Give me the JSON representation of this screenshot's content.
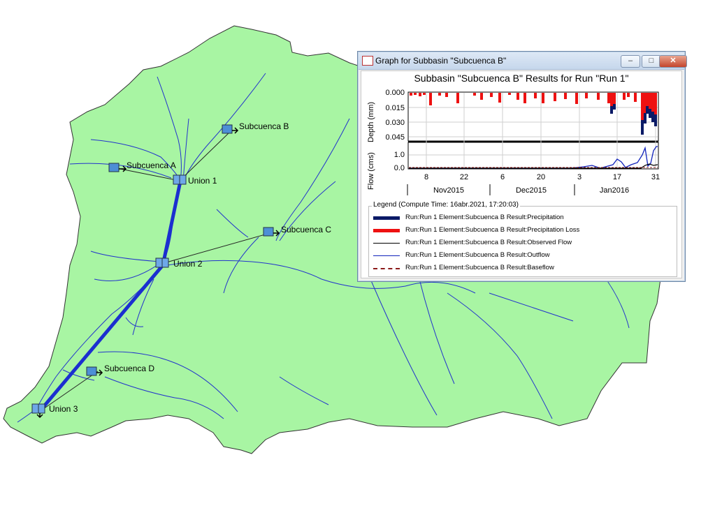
{
  "map": {
    "nodes": [
      {
        "name": "Subcuenca A",
        "type": "subbasin"
      },
      {
        "name": "Subcuenca B",
        "type": "subbasin"
      },
      {
        "name": "Subcuenca C",
        "type": "subbasin"
      },
      {
        "name": "Subcuenca D",
        "type": "subbasin"
      },
      {
        "name": "Union 1",
        "type": "junction"
      },
      {
        "name": "Union 2",
        "type": "junction"
      },
      {
        "name": "Union 3",
        "type": "junction"
      }
    ],
    "colors": {
      "basin_fill": "#a8f5a3",
      "river": "#2233cc",
      "reach": "#1b2fd0"
    }
  },
  "window": {
    "title": "Graph for Subbasin \"Subcuenca B\"",
    "buttons": {
      "minimize": "–",
      "maximize": "□",
      "close": "✕"
    }
  },
  "chart_data": {
    "title": "Subbasin \"Subcuenca B\" Results for Run \"Run 1\"",
    "type": "line",
    "top_panel": {
      "ylabel": "Depth (mm)",
      "y_ticks": [
        "0.000",
        "0.015",
        "0.030",
        "0.045"
      ],
      "ylim": [
        0.0,
        0.05
      ],
      "y_inverted": true,
      "series": [
        {
          "name": "Run:Run 1 Element:Subcuenca B Result:Precipitation",
          "color": "#0a1a66"
        },
        {
          "name": "Run:Run 1 Element:Subcuenca B Result:Precipitation Loss",
          "color": "#ee1111"
        }
      ]
    },
    "bottom_panel": {
      "ylabel": "Flow (cms)",
      "y_ticks": [
        "0.0",
        "1.0"
      ],
      "ylim": [
        0.0,
        1.8
      ],
      "series": [
        {
          "name": "Run:Run 1 Element:Subcuenca B Result:Observed Flow",
          "color": "#000000"
        },
        {
          "name": "Run:Run 1 Element:Subcuenca B Result:Outflow",
          "color": "#1022bb"
        },
        {
          "name": "Run:Run 1 Element:Subcuenca B Result:Baseflow",
          "color": "#8b1a1a"
        }
      ]
    },
    "x_ticks": [
      "8",
      "22",
      "6",
      "20",
      "3",
      "17",
      "31"
    ],
    "months": [
      "Nov2015",
      "Dec2015",
      "Jan2016"
    ],
    "legend": {
      "title": "Legend (Compute Time: 16abr.2021, 17:20:03)",
      "items": [
        "Run:Run 1 Element:Subcuenca B Result:Precipitation",
        "Run:Run 1 Element:Subcuenca B Result:Precipitation Loss",
        "Run:Run 1 Element:Subcuenca B Result:Observed Flow",
        "Run:Run 1 Element:Subcuenca B Result:Outflow",
        "Run:Run 1 Element:Subcuenca B Result:Baseflow"
      ]
    },
    "grid": true
  }
}
